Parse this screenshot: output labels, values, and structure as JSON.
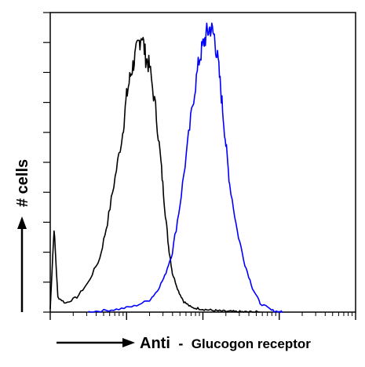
{
  "chart_data": {
    "type": "line",
    "chart_kind": "flow cytometry histogram overlay",
    "xlabel_prefix": "Anti",
    "xlabel_separator": "-",
    "xlabel_suffix": "Glucogon receptor",
    "ylabel": "# cells",
    "x_scale": "log",
    "x_decades": 4,
    "xlim": [
      0,
      4
    ],
    "ylim": [
      0,
      100
    ],
    "y_ticks": [
      0,
      10,
      20,
      30,
      40,
      50,
      60,
      70,
      80,
      90,
      100
    ],
    "grid": false,
    "legend": "none",
    "series": [
      {
        "color": "#000000",
        "x": [
          0.0,
          0.05,
          0.1,
          0.2,
          0.35,
          0.5,
          0.65,
          0.75,
          0.85,
          0.95,
          1.0,
          1.05,
          1.1,
          1.15,
          1.2,
          1.25,
          1.3,
          1.38,
          1.45,
          1.5,
          1.55,
          1.6,
          1.68,
          1.75,
          1.85,
          1.95,
          2.05,
          2.15,
          2.25,
          2.35,
          2.45,
          2.55,
          2.65,
          2.75
        ],
        "y": [
          1,
          28,
          5,
          3,
          5,
          10,
          18,
          30,
          45,
          60,
          72,
          79,
          84,
          89,
          93,
          85,
          82,
          68,
          50,
          35,
          22,
          13,
          7,
          3.5,
          1.5,
          1.2,
          0.8,
          0.5,
          0.3,
          0.2,
          0.1,
          0.05,
          0.03,
          0
        ]
      },
      {
        "color": "#0000ff",
        "x": [
          0.5,
          0.7,
          0.9,
          1.1,
          1.3,
          1.4,
          1.5,
          1.6,
          1.7,
          1.8,
          1.88,
          1.95,
          2.0,
          2.05,
          2.1,
          2.15,
          2.2,
          2.25,
          2.3,
          2.35,
          2.45,
          2.55,
          2.65,
          2.75,
          2.9,
          3.0,
          3.05
        ],
        "y": [
          0.1,
          0.5,
          1,
          2,
          4,
          7,
          12,
          20,
          36,
          56,
          72,
          84,
          89,
          93,
          95,
          92,
          83,
          70,
          56,
          43,
          27,
          16,
          8,
          3,
          0.6,
          0.1,
          0
        ]
      }
    ]
  }
}
